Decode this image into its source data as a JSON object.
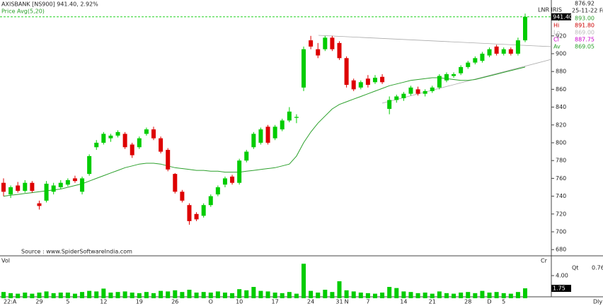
{
  "chart_data": {
    "type": "candlestick",
    "title": "AXISBANK [NS900]  941.40, 2.92%",
    "subtitle": "Price  Avg(5,20)",
    "source": "Source : www.SpiderSoftwareIndia.com",
    "toolbar": "LNR  IRIS",
    "header_right": [
      "876.92",
      "25-11-22 Fri"
    ],
    "ohlc_legend": [
      {
        "label": "Op",
        "value": "893.00",
        "color": "#2ca02c"
      },
      {
        "label": "Hi",
        "value": "891.80",
        "color": "#cc0000"
      },
      {
        "label": "Lo",
        "value": "869.00",
        "color": "#bbbbbb"
      },
      {
        "label": "Cl",
        "value": "887.75",
        "color": "#cc00cc"
      },
      {
        "label": "Av",
        "value": "869.05",
        "color": "#2ca02c"
      }
    ],
    "categories": [
      "22:A",
      null,
      null,
      null,
      null,
      "29",
      null,
      null,
      null,
      "5",
      null,
      null,
      null,
      null,
      "12",
      null,
      null,
      null,
      null,
      "19",
      null,
      null,
      null,
      null,
      "26",
      null,
      null,
      null,
      null,
      "O",
      null,
      null,
      null,
      "10",
      null,
      null,
      null,
      null,
      "17",
      null,
      null,
      null,
      null,
      "24",
      null,
      null,
      null,
      "31",
      "N",
      null,
      null,
      "7",
      null,
      null,
      null,
      null,
      "14",
      null,
      null,
      null,
      "21",
      null,
      null,
      null,
      null,
      "28",
      null,
      null,
      "D",
      null,
      "5",
      null,
      null,
      null
    ],
    "open": [
      755,
      742,
      752,
      746,
      755,
      732,
      735,
      745,
      750,
      753,
      760,
      745,
      765,
      795,
      800,
      805,
      808,
      810,
      798,
      795,
      810,
      815,
      805,
      792,
      765,
      745,
      730,
      720,
      718,
      730,
      742,
      753,
      762,
      755,
      780,
      795,
      800,
      818,
      805,
      815,
      825,
      828,
      862,
      915,
      905,
      905,
      918,
      912,
      895,
      870,
      862,
      872,
      868,
      874,
      838,
      848,
      850,
      855,
      860,
      855,
      858,
      862,
      870,
      875,
      878,
      885,
      890,
      892,
      898,
      908,
      900,
      905,
      900,
      915
    ],
    "high": [
      760,
      752,
      756,
      758,
      757,
      735,
      757,
      755,
      758,
      760,
      763,
      762,
      787,
      803,
      812,
      810,
      814,
      812,
      800,
      807,
      817,
      818,
      807,
      794,
      766,
      747,
      732,
      722,
      732,
      742,
      752,
      762,
      764,
      782,
      792,
      812,
      817,
      820,
      820,
      827,
      840,
      832,
      908,
      920,
      912,
      920,
      920,
      914,
      897,
      872,
      870,
      876,
      876,
      877,
      852,
      854,
      857,
      864,
      863,
      860,
      864,
      877,
      879,
      879,
      887,
      892,
      897,
      902,
      907,
      910,
      907,
      907,
      918,
      945
    ],
    "low": [
      740,
      738,
      744,
      744,
      744,
      725,
      733,
      742,
      748,
      751,
      755,
      742,
      763,
      792,
      798,
      801,
      806,
      793,
      783,
      793,
      808,
      803,
      788,
      768,
      743,
      733,
      708,
      712,
      716,
      728,
      740,
      750,
      753,
      753,
      778,
      793,
      798,
      798,
      803,
      813,
      823,
      822,
      858,
      905,
      895,
      903,
      903,
      893,
      862,
      858,
      860,
      862,
      866,
      866,
      832,
      845,
      847,
      853,
      853,
      852,
      856,
      860,
      868,
      873,
      876,
      883,
      888,
      890,
      896,
      898,
      898,
      898,
      898,
      913
    ],
    "close": [
      745,
      750,
      746,
      755,
      746,
      729,
      754,
      752,
      755,
      758,
      757,
      760,
      785,
      800,
      810,
      808,
      812,
      795,
      786,
      805,
      815,
      805,
      790,
      770,
      745,
      735,
      712,
      714,
      730,
      740,
      750,
      760,
      755,
      780,
      790,
      810,
      815,
      800,
      818,
      825,
      835,
      829,
      905,
      908,
      898,
      918,
      905,
      895,
      865,
      860,
      868,
      865,
      873,
      868,
      848,
      852,
      855,
      862,
      855,
      858,
      862,
      875,
      877,
      877,
      885,
      890,
      895,
      900,
      905,
      900,
      905,
      900,
      915,
      941.4
    ],
    "volume": [
      1.1,
      0.9,
      0.8,
      1.0,
      0.8,
      1.0,
      1.2,
      0.9,
      1.0,
      1.0,
      0.8,
      1.1,
      1.3,
      1.2,
      1.7,
      1.0,
      1.1,
      1.2,
      1.0,
      0.9,
      1.1,
      0.9,
      1.3,
      1.2,
      1.4,
      1.1,
      1.5,
      1.0,
      1.1,
      1.0,
      1.2,
      1.0,
      0.9,
      1.6,
      1.4,
      2.0,
      1.3,
      1.2,
      1.0,
      0.9,
      1.1,
      0.8,
      6.1,
      1.3,
      1.0,
      1.5,
      1.1,
      3.0,
      1.4,
      1.2,
      1.0,
      0.9,
      0.8,
      1.0,
      2.0,
      1.8,
      1.2,
      1.1,
      0.9,
      1.0,
      0.8,
      1.2,
      0.9,
      0.8,
      1.0,
      1.1,
      0.9,
      1.3,
      1.0,
      1.1,
      0.9,
      0.8,
      1.1,
      1.75
    ],
    "average": {
      "color": "#2ca02c",
      "values": [
        740,
        741,
        742,
        743,
        744,
        745,
        746,
        747,
        748,
        750,
        752,
        754,
        757,
        760,
        763,
        766,
        769,
        772,
        774,
        776,
        777,
        777,
        776,
        774,
        772,
        771,
        770,
        769,
        769,
        768,
        768,
        767,
        767,
        767,
        768,
        769,
        770,
        771,
        772,
        774,
        776,
        785,
        800,
        812,
        822,
        830,
        838,
        843,
        846,
        849,
        852,
        855,
        858,
        861,
        864,
        866,
        868,
        870,
        871,
        872,
        873,
        873,
        872,
        871,
        870,
        870,
        871,
        873,
        875,
        877,
        879,
        881,
        883,
        885
      ]
    },
    "up_color": "#00cc00",
    "down_color": "#dd0000",
    "ylim": [
      677,
      946
    ],
    "yticks": [
      680,
      700,
      720,
      740,
      760,
      780,
      800,
      820,
      840,
      860,
      880,
      900,
      920
    ],
    "price_marker": {
      "value": 941.4,
      "label": "941.40"
    },
    "volume_title": "Vol",
    "volume_unit": "Cr",
    "volume_ylim": [
      0,
      7
    ],
    "volume_ticks": [
      {
        "value": 4,
        "label": "4.00"
      }
    ],
    "volume_marker": {
      "value": 1.75,
      "label": "1.75"
    },
    "qt": {
      "label": "Qt",
      "value": "0.76"
    },
    "period": "Dly"
  }
}
